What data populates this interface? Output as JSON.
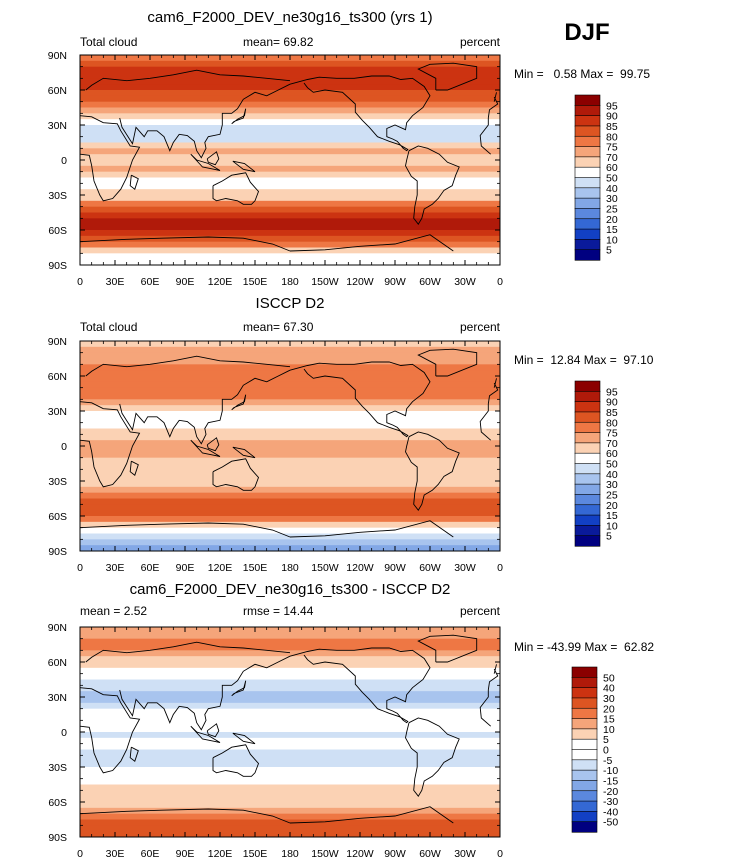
{
  "season": "DJF",
  "chart_data": [
    {
      "type": "heatmap",
      "title": "cam6_F2000_DEV_ne30g16_ts300 (yrs 1)",
      "left_label": "Total cloud",
      "center_label": "mean=  69.82",
      "right_label": "percent",
      "stats": "Min =   0.58 Max =  99.75",
      "xlabels": [
        "0",
        "30E",
        "60E",
        "90E",
        "120E",
        "150E",
        "180",
        "150W",
        "120W",
        "90W",
        "60W",
        "30W",
        "0"
      ],
      "ylabels": [
        "90N",
        "60N",
        "30N",
        "0",
        "30S",
        "60S",
        "90S"
      ],
      "colorbar_labels": [
        "95",
        "90",
        "85",
        "80",
        "75",
        "70",
        "60",
        "50",
        "40",
        "30",
        "25",
        "20",
        "15",
        "10",
        "5"
      ],
      "colorbar_colors": [
        "#8b0000",
        "#b01a0a",
        "#cc3311",
        "#dd5522",
        "#ee7744",
        "#f5a57a",
        "#fbd2b4",
        "#ffffff",
        "#cfe0f5",
        "#a8c4ee",
        "#82a7e6",
        "#5b88de",
        "#3468d4",
        "#1240c4",
        "#0a1a9a",
        "#000080"
      ],
      "bands": [
        {
          "lat": 90,
          "value": 75
        },
        {
          "lat": 75,
          "value": 88
        },
        {
          "lat": 60,
          "value": 85
        },
        {
          "lat": 45,
          "value": 75
        },
        {
          "lat": 30,
          "value": 45
        },
        {
          "lat": 20,
          "value": 40
        },
        {
          "lat": 10,
          "value": 75
        },
        {
          "lat": 0,
          "value": 65
        },
        {
          "lat": -10,
          "value": 72
        },
        {
          "lat": -20,
          "value": 55
        },
        {
          "lat": -30,
          "value": 62
        },
        {
          "lat": -45,
          "value": 88
        },
        {
          "lat": -60,
          "value": 92
        },
        {
          "lat": -70,
          "value": 80
        },
        {
          "lat": -80,
          "value": 60
        },
        {
          "lat": -90,
          "value": 55
        }
      ]
    },
    {
      "type": "heatmap",
      "title": "ISCCP D2",
      "left_label": "Total cloud",
      "center_label": "mean=  67.30",
      "right_label": "percent",
      "stats": "Min =  12.84 Max =  97.10",
      "xlabels": [
        "0",
        "30E",
        "60E",
        "90E",
        "120E",
        "150E",
        "180",
        "150W",
        "120W",
        "90W",
        "60W",
        "30W",
        "0"
      ],
      "ylabels": [
        "90N",
        "60N",
        "30N",
        "0",
        "30S",
        "60S",
        "90S"
      ],
      "colorbar_labels": [
        "95",
        "90",
        "85",
        "80",
        "75",
        "70",
        "60",
        "50",
        "40",
        "30",
        "25",
        "20",
        "15",
        "10",
        "5"
      ],
      "colorbar_colors": [
        "#8b0000",
        "#b01a0a",
        "#cc3311",
        "#dd5522",
        "#ee7744",
        "#f5a57a",
        "#fbd2b4",
        "#ffffff",
        "#cfe0f5",
        "#a8c4ee",
        "#82a7e6",
        "#5b88de",
        "#3468d4",
        "#1240c4",
        "#0a1a9a",
        "#000080"
      ],
      "bands": [
        {
          "lat": 90,
          "value": 68
        },
        {
          "lat": 75,
          "value": 72
        },
        {
          "lat": 60,
          "value": 78
        },
        {
          "lat": 45,
          "value": 80
        },
        {
          "lat": 30,
          "value": 60
        },
        {
          "lat": 20,
          "value": 48
        },
        {
          "lat": 10,
          "value": 65
        },
        {
          "lat": 0,
          "value": 72
        },
        {
          "lat": -10,
          "value": 70
        },
        {
          "lat": -20,
          "value": 60
        },
        {
          "lat": -30,
          "value": 65
        },
        {
          "lat": -45,
          "value": 82
        },
        {
          "lat": -60,
          "value": 84
        },
        {
          "lat": -70,
          "value": 65
        },
        {
          "lat": -80,
          "value": 35
        },
        {
          "lat": -90,
          "value": 25
        }
      ]
    },
    {
      "type": "heatmap",
      "title": "cam6_F2000_DEV_ne30g16_ts300 - ISCCP D2",
      "left_label": "mean =   2.52",
      "center_label": "rmse =  14.44",
      "right_label": "percent",
      "stats": "Min = -43.99 Max =  62.82",
      "xlabels": [
        "0",
        "30E",
        "60E",
        "90E",
        "120E",
        "150E",
        "180",
        "150W",
        "120W",
        "90W",
        "60W",
        "30W",
        "0"
      ],
      "ylabels": [
        "90N",
        "60N",
        "30N",
        "0",
        "30S",
        "60S",
        "90S"
      ],
      "colorbar_labels": [
        "50",
        "40",
        "30",
        "20",
        "15",
        "10",
        "5",
        "0",
        "-5",
        "-10",
        "-15",
        "-20",
        "-30",
        "-40",
        "-50"
      ],
      "colorbar_colors": [
        "#8b0000",
        "#b01a0a",
        "#cc3311",
        "#dd5522",
        "#ee7744",
        "#f5a57a",
        "#fbd2b4",
        "#ffffff",
        "#ffffff",
        "#cfe0f5",
        "#a8c4ee",
        "#82a7e6",
        "#5b88de",
        "#3468d4",
        "#1240c4",
        "#000080"
      ],
      "bands": [
        {
          "lat": 90,
          "value": 10
        },
        {
          "lat": 75,
          "value": 18
        },
        {
          "lat": 60,
          "value": 8
        },
        {
          "lat": 45,
          "value": -4
        },
        {
          "lat": 30,
          "value": -12
        },
        {
          "lat": 20,
          "value": -8
        },
        {
          "lat": 10,
          "value": 5
        },
        {
          "lat": 0,
          "value": -8
        },
        {
          "lat": -10,
          "value": 3
        },
        {
          "lat": -20,
          "value": -10
        },
        {
          "lat": -30,
          "value": -6
        },
        {
          "lat": -45,
          "value": 6
        },
        {
          "lat": -60,
          "value": 8
        },
        {
          "lat": -70,
          "value": 15
        },
        {
          "lat": -80,
          "value": 25
        },
        {
          "lat": -90,
          "value": 30
        }
      ]
    }
  ]
}
